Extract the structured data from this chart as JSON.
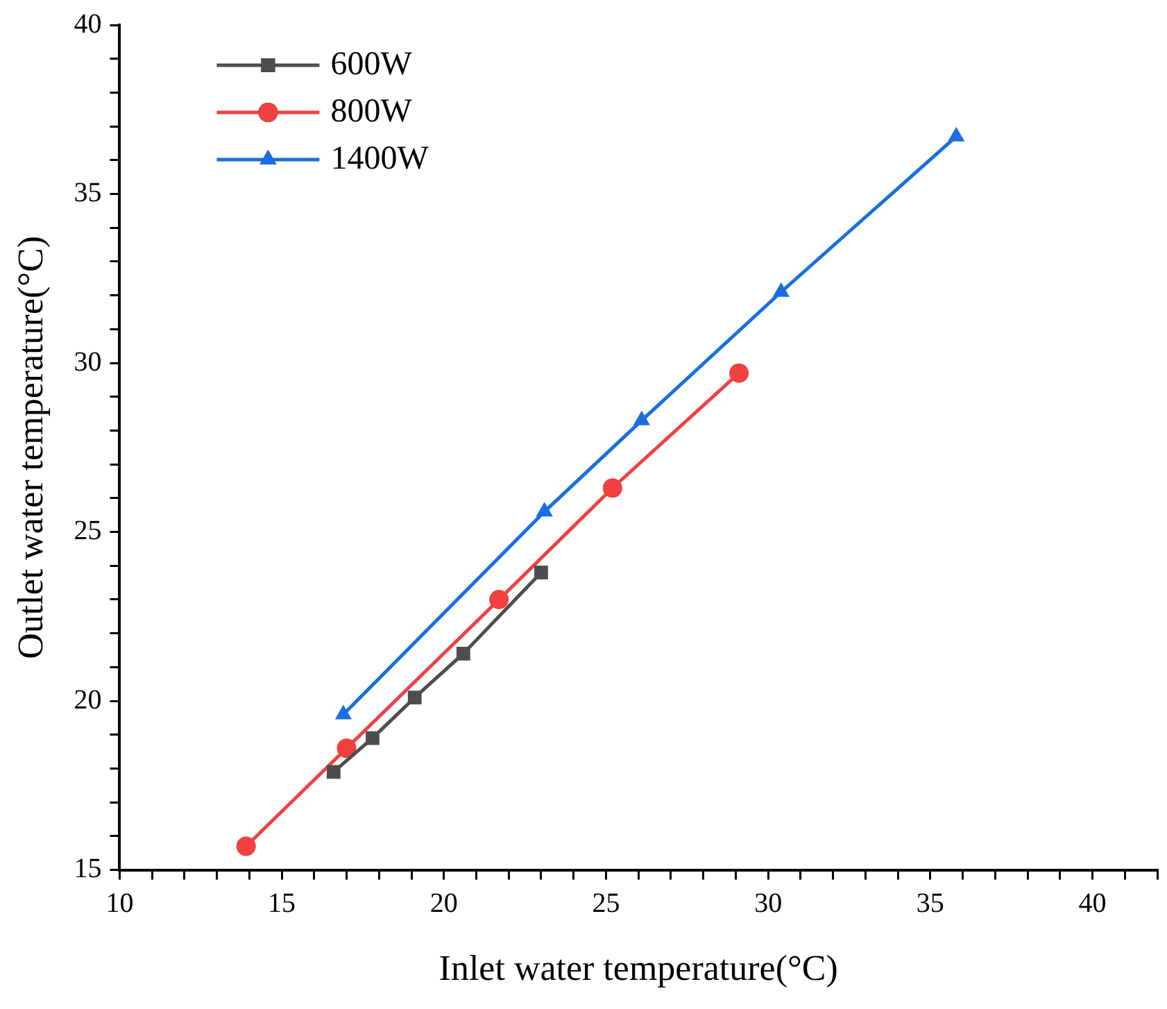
{
  "chart_data": {
    "type": "line",
    "xlabel": "Inlet water temperature(°C)",
    "ylabel": "Outlet water temperature(°C)",
    "xlim": [
      10,
      42
    ],
    "ylim": [
      15,
      40
    ],
    "xticks": [
      10,
      {
        "value": 11,
        "label": null
      },
      {
        "value": 12,
        "label": null
      },
      {
        "value": 13,
        "label": null
      },
      {
        "value": 14,
        "label": null
      },
      15,
      {
        "value": 16,
        "label": null
      },
      {
        "value": 17,
        "label": null
      },
      {
        "value": 18,
        "label": null
      },
      {
        "value": 19,
        "label": null
      },
      20,
      {
        "value": 21,
        "label": null
      },
      {
        "value": 22,
        "label": null
      },
      {
        "value": 23,
        "label": null
      },
      {
        "value": 24,
        "label": null
      },
      25,
      {
        "value": 26,
        "label": null
      },
      {
        "value": 27,
        "label": null
      },
      {
        "value": 28,
        "label": null
      },
      {
        "value": 29,
        "label": null
      },
      30,
      {
        "value": 31,
        "label": null
      },
      {
        "value": 32,
        "label": null
      },
      {
        "value": 33,
        "label": null
      },
      {
        "value": 34,
        "label": null
      },
      35,
      {
        "value": 36,
        "label": null
      },
      {
        "value": 37,
        "label": null
      },
      {
        "value": 38,
        "label": null
      },
      {
        "value": 39,
        "label": null
      },
      40,
      {
        "value": 41,
        "label": null
      },
      {
        "value": 42,
        "label": null
      }
    ],
    "yticks": [
      15,
      {
        "value": 16,
        "label": null
      },
      {
        "value": 17,
        "label": null
      },
      {
        "value": 18,
        "label": null
      },
      {
        "value": 19,
        "label": null
      },
      20,
      {
        "value": 21,
        "label": null
      },
      {
        "value": 22,
        "label": null
      },
      {
        "value": 23,
        "label": null
      },
      {
        "value": 24,
        "label": null
      },
      25,
      {
        "value": 26,
        "label": null
      },
      {
        "value": 27,
        "label": null
      },
      {
        "value": 28,
        "label": null
      },
      {
        "value": 29,
        "label": null
      },
      30,
      {
        "value": 31,
        "label": null
      },
      {
        "value": 32,
        "label": null
      },
      {
        "value": 33,
        "label": null
      },
      {
        "value": 34,
        "label": null
      },
      35,
      {
        "value": 36,
        "label": null
      },
      {
        "value": 37,
        "label": null
      },
      {
        "value": 38,
        "label": null
      },
      {
        "value": 39,
        "label": null
      },
      40
    ],
    "legend": "top left",
    "grid": false,
    "series": [
      {
        "name": "600W",
        "color": "#4d4d4d",
        "marker": "square",
        "x": [
          16.6,
          17.8,
          19.1,
          20.6,
          23.0
        ],
        "values": [
          17.9,
          18.9,
          20.1,
          21.4,
          23.8
        ]
      },
      {
        "name": "800W",
        "color": "#f04040",
        "marker": "circle",
        "x": [
          13.9,
          17.0,
          21.7,
          25.2,
          29.1
        ],
        "values": [
          15.7,
          18.6,
          23.0,
          26.3,
          29.7
        ]
      },
      {
        "name": "1400W",
        "color": "#1a6ee0",
        "marker": "triangle",
        "x": [
          16.9,
          23.1,
          26.1,
          30.4,
          35.8
        ],
        "values": [
          19.6,
          25.6,
          28.3,
          32.1,
          36.7
        ]
      }
    ]
  }
}
